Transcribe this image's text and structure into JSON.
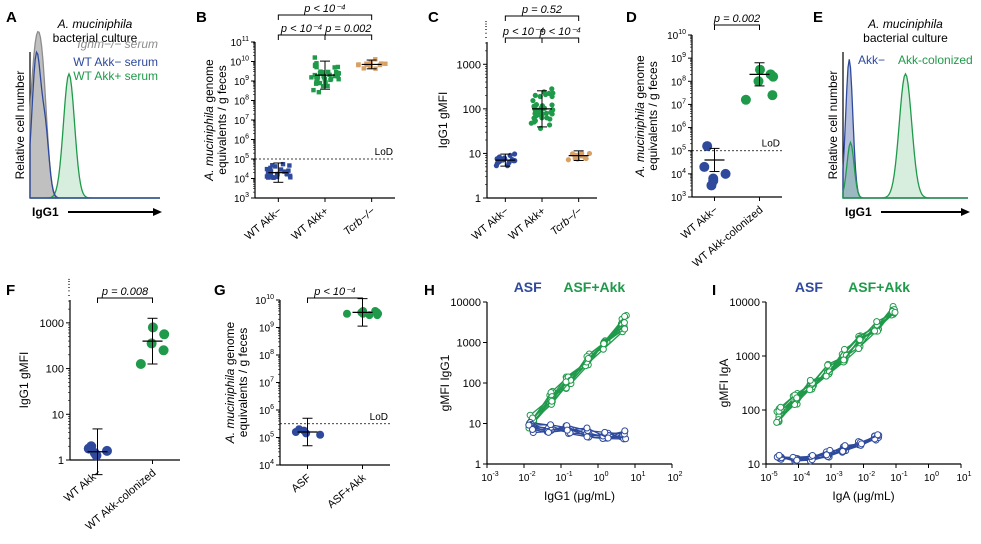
{
  "colors": {
    "blue": "#2f4a9c",
    "green": "#1f9a4a",
    "orange": "#d9a066",
    "gray": "#8c8c8c",
    "black": "#000000"
  },
  "chart_data": [
    {
      "panel": "A",
      "type": "histogram",
      "title_italic": "A. muciniphila",
      "title": "bacterial culture",
      "xlabel": "IgG1",
      "ylabel": "Relative cell number",
      "legend": [
        {
          "name": "Ighm−/− serum",
          "color": "#8c8c8c"
        },
        {
          "name": "WT Akk− serum",
          "color": "#2f4a9c"
        },
        {
          "name": "WT Akk+ serum",
          "color": "#1f9a4a"
        }
      ]
    },
    {
      "panel": "B",
      "type": "scatter",
      "ylabel_italic": "A. muciniphila",
      "ylabel": "genome equivalents / g feces",
      "ylim_log": [
        3,
        11
      ],
      "categories": [
        "WT Akk−",
        "WT Akk+",
        "Tcrb−/−"
      ],
      "lod": 5,
      "lod_label": "LoD",
      "series": [
        {
          "name": "WT Akk−",
          "median_log": 4.3,
          "spread_log": 0.55,
          "n": 26
        },
        {
          "name": "WT Akk+",
          "median_log": 9.3,
          "spread_log": 0.8,
          "n": 40
        },
        {
          "name": "Tcrb−/−",
          "median_log": 9.85,
          "spread_log": 0.25,
          "n": 14
        }
      ],
      "comparisons": [
        {
          "label": "p < 10⁻⁴",
          "from": 0,
          "to": 2
        },
        {
          "label": "p < 10⁻⁴",
          "from": 0,
          "to": 1
        },
        {
          "label": "p = 0.002",
          "from": 1,
          "to": 2
        }
      ]
    },
    {
      "panel": "C",
      "type": "scatter",
      "ylabel": "IgG1 gMFI",
      "ylim_log": [
        0,
        3.5
      ],
      "categories": [
        "WT Akk−",
        "WT Akk+",
        "Tcrb−/−"
      ],
      "series": [
        {
          "name": "WT Akk−",
          "median_log": 0.85,
          "spread_log": 0.15,
          "n": 20
        },
        {
          "name": "WT Akk+",
          "median_log": 2.0,
          "spread_log": 0.45,
          "n": 42
        },
        {
          "name": "Tcrb−/−",
          "median_log": 0.95,
          "spread_log": 0.12,
          "n": 13
        }
      ],
      "comparisons": [
        {
          "label": "p = 0.52",
          "from": 0,
          "to": 2
        },
        {
          "label": "p < 10⁻⁴",
          "from": 0,
          "to": 1
        },
        {
          "label": "p < 10⁻⁴",
          "from": 1,
          "to": 2
        }
      ]
    },
    {
      "panel": "D",
      "type": "scatter",
      "ylabel_italic": "A. muciniphila",
      "ylabel": "genome equivalents / g feces",
      "ylim_log": [
        3,
        10
      ],
      "categories": [
        "WT Akk−",
        "WT Akk-colonized"
      ],
      "lod": 5,
      "lod_label": "LoD",
      "series": [
        {
          "name": "WT Akk−",
          "values_log": [
            5.2,
            4.3,
            4.0,
            3.7,
            3.5,
            3.8
          ],
          "mean_log": 4.6
        },
        {
          "name": "WT Akk-colonized",
          "values_log": [
            8.5,
            8.2,
            8.0,
            7.4,
            7.2,
            8.3
          ],
          "mean_log": 8.3
        }
      ],
      "comparisons": [
        {
          "label": "p = 0.002",
          "from": 0,
          "to": 1
        }
      ]
    },
    {
      "panel": "E",
      "type": "histogram",
      "title_italic": "A. muciniphila",
      "title": "bacterial culture",
      "xlabel": "IgG1",
      "ylabel": "Relative cell number",
      "legend": [
        {
          "name": "Akk−",
          "color": "#2f4a9c"
        },
        {
          "name": "Akk-colonized",
          "color": "#1f9a4a"
        }
      ]
    },
    {
      "panel": "F",
      "type": "scatter",
      "ylabel": "IgG1 gMFI",
      "ylim_log": [
        0,
        3.5
      ],
      "categories": [
        "WT Akk−",
        "WT Akk-colonized"
      ],
      "series": [
        {
          "name": "WT Akk−",
          "values_log": [
            0.3,
            0.25,
            0.2,
            0.1,
            0.15
          ],
          "mean_log": 0.18
        },
        {
          "name": "WT Akk-colonized",
          "values_log": [
            2.9,
            2.75,
            2.55,
            2.4,
            2.1
          ],
          "mean_log": 2.6
        }
      ],
      "comparisons": [
        {
          "label": "p = 0.008",
          "from": 0,
          "to": 1
        }
      ]
    },
    {
      "panel": "G",
      "type": "scatter",
      "ylabel_italic": "A. muciniphila",
      "ylabel": "genome equivalents / g feces",
      "ylim_log": [
        4,
        10
      ],
      "categories": [
        "ASF",
        "ASF+Akk"
      ],
      "lod": 5.5,
      "lod_label": "LoD",
      "series": [
        {
          "name": "ASF",
          "values_log": [
            5.3,
            5.2,
            5.1,
            5.15,
            5.25
          ],
          "mean_log": 5.2
        },
        {
          "name": "ASF+Akk",
          "values_log": [
            9.6,
            9.5,
            9.55,
            9.45,
            9.5,
            9.6,
            9.5,
            9.55,
            9.45
          ],
          "mean_log": 9.55
        }
      ],
      "comparisons": [
        {
          "label": "p < 10⁻⁴",
          "from": 0,
          "to": 1
        }
      ]
    },
    {
      "panel": "H",
      "type": "line",
      "xlabel": "IgG1 (μg/mL)",
      "ylabel": "gMFI IgG1",
      "xlim_log": [
        -3,
        2
      ],
      "ylim_log": [
        0,
        4
      ],
      "series": [
        {
          "name": "ASF",
          "color": "#2f4a9c"
        },
        {
          "name": "ASF+Akk",
          "color": "#1f9a4a"
        }
      ]
    },
    {
      "panel": "I",
      "type": "line",
      "xlabel": "IgA (μg/mL)",
      "ylabel": "gMFI IgA",
      "xlim_log": [
        -5,
        1
      ],
      "ylim_log": [
        1,
        4
      ],
      "series": [
        {
          "name": "ASF",
          "color": "#2f4a9c"
        },
        {
          "name": "ASF+Akk",
          "color": "#1f9a4a"
        }
      ]
    }
  ]
}
